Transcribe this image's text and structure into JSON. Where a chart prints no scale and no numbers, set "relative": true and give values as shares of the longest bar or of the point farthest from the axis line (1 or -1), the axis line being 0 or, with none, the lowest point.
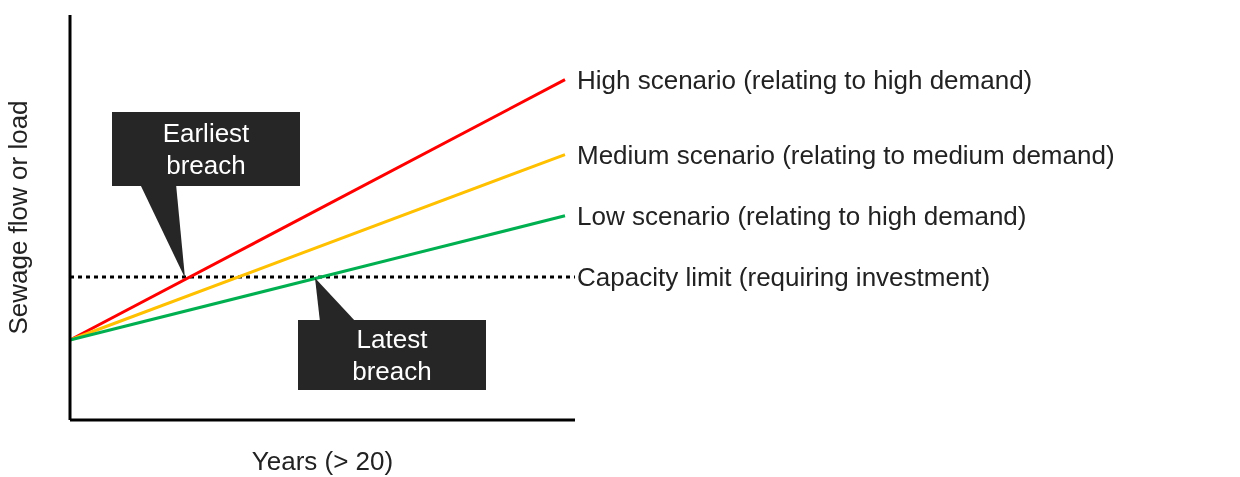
{
  "chart_data": {
    "type": "line",
    "relative": true,
    "xlabel": "Years (> 20)",
    "ylabel": "Sewage flow or load",
    "categories": [
      null,
      null
    ],
    "series": [
      {
        "name": "High scenario (relating to high demand)",
        "color": "#ff0000",
        "values": [
          0.235,
          1
        ]
      },
      {
        "name": "Medium scenario (relating to medium demand)",
        "color": "#ffc000",
        "values": [
          0.235,
          0.78
        ]
      },
      {
        "name": "Low scenario (relating to high demand)",
        "color": "#00b050",
        "values": [
          0.235,
          0.6
        ]
      }
    ],
    "ref_lines": [
      {
        "axis": "y",
        "value": 0.42,
        "label": "Capacity limit (requiring investment)",
        "color": "#000000",
        "line_style": "dotted"
      }
    ],
    "annotations": [
      "Earliest breach",
      "Latest breach"
    ],
    "grid": false,
    "legend": false,
    "marker": "none",
    "line_style": "solid"
  }
}
